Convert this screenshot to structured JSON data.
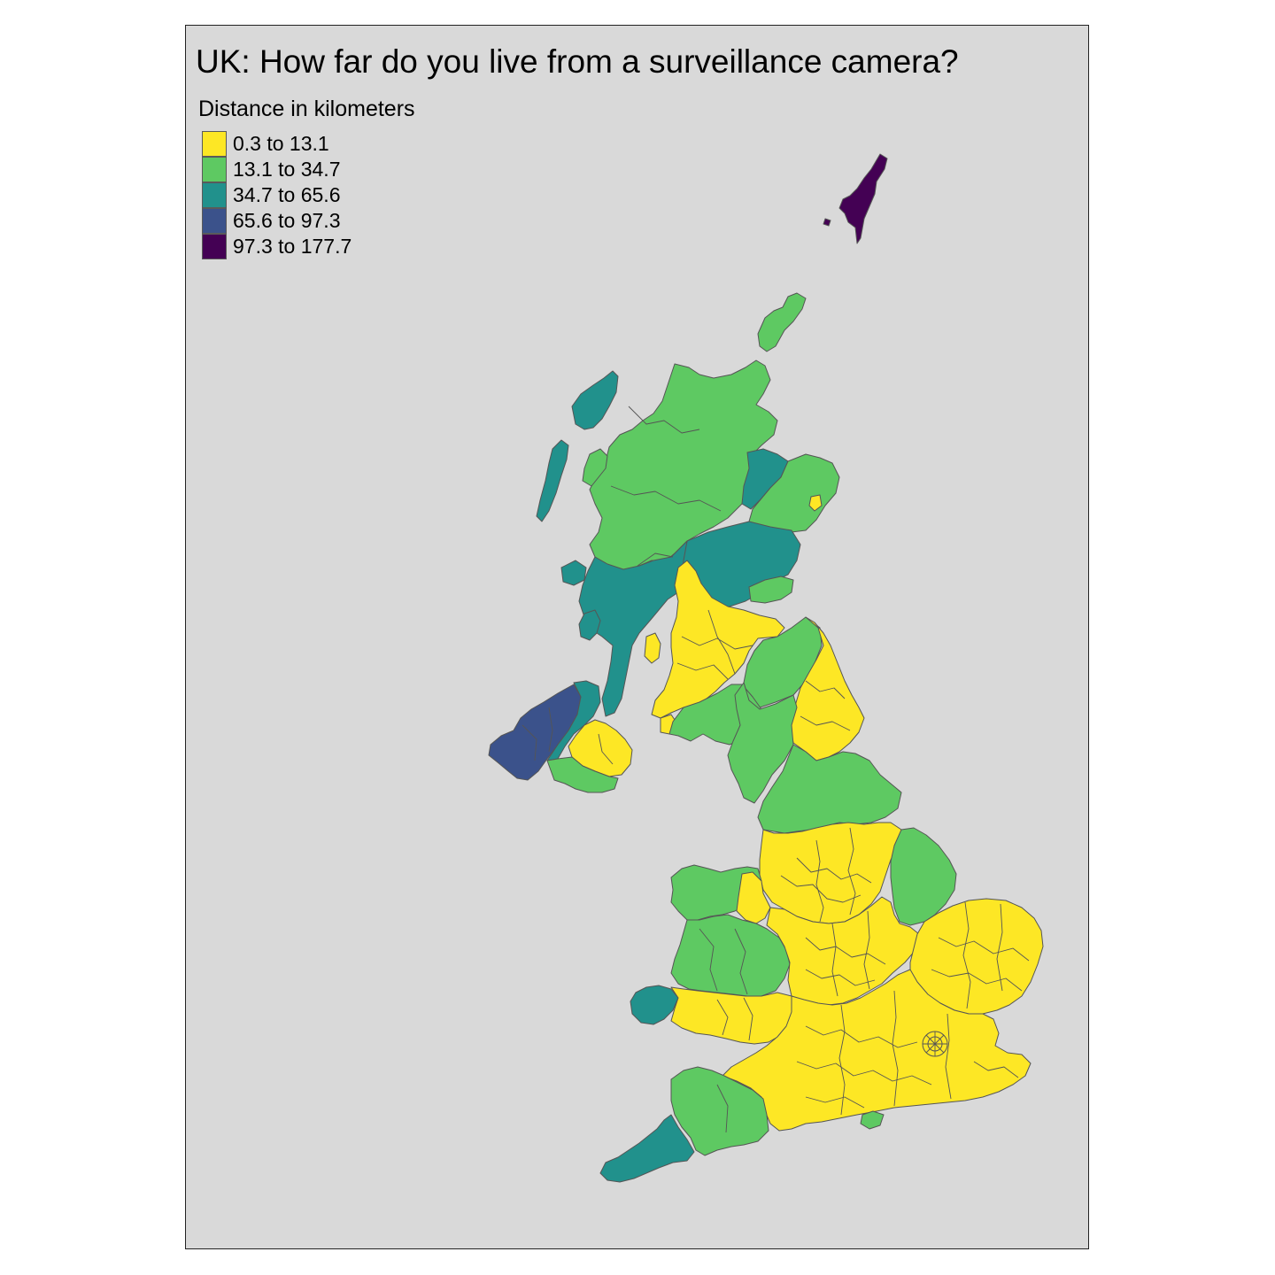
{
  "map": {
    "title": "UK: How far do you live from a surveillance camera?",
    "legend": {
      "title": "Distance in kilometers",
      "items": [
        {
          "label": "0.3 to 13.1",
          "color": "#fde725"
        },
        {
          "label": "13.1 to 34.7",
          "color": "#5ec962"
        },
        {
          "label": "34.7 to 65.6",
          "color": "#21918c"
        },
        {
          "label": "65.6 to 97.3",
          "color": "#3b528b"
        },
        {
          "label": "97.3 to 177.7",
          "color": "#440154"
        }
      ]
    },
    "background_color": "#d9d9d9",
    "region_classes": {
      "shetland": "97.3 to 177.7",
      "orkney": "13.1 to 34.7",
      "highlands": "13.1 to 34.7",
      "western-isles": "34.7 to 65.6",
      "moray-inland": "34.7 to 65.6",
      "aberdeen-city": "0.3 to 13.1",
      "perth-angus": "34.7 to 65.6",
      "argyll": "34.7 to 65.6",
      "fife": "13.1 to 34.7",
      "central-belt": "0.3 to 13.1",
      "borders": "13.1 to 34.7",
      "dumfries": "13.1 to 34.7",
      "northern-ireland-west": "65.6 to 97.3",
      "northern-ireland-mid": "34.7 to 65.6",
      "northern-ireland-east": "0.3 to 13.1",
      "northern-ireland-south": "13.1 to 34.7",
      "north-east-england": "0.3 to 13.1",
      "cumbria-yorkshire-dales": "13.1 to 34.7",
      "north-yorkshire": "13.1 to 34.7",
      "lancashire-yorkshire": "0.3 to 13.1",
      "lincolnshire": "13.1 to 34.7",
      "midlands": "0.3 to 13.1",
      "north-wales": "13.1 to 34.7",
      "mid-wales": "13.1 to 34.7",
      "pembrokeshire": "34.7 to 65.6",
      "south-wales": "0.3 to 13.1",
      "east-anglia": "0.3 to 13.1",
      "south-east-england": "0.3 to 13.1",
      "devon": "13.1 to 34.7",
      "cornwall": "34.7 to 65.6",
      "isle-of-wight": "13.1 to 34.7"
    }
  }
}
